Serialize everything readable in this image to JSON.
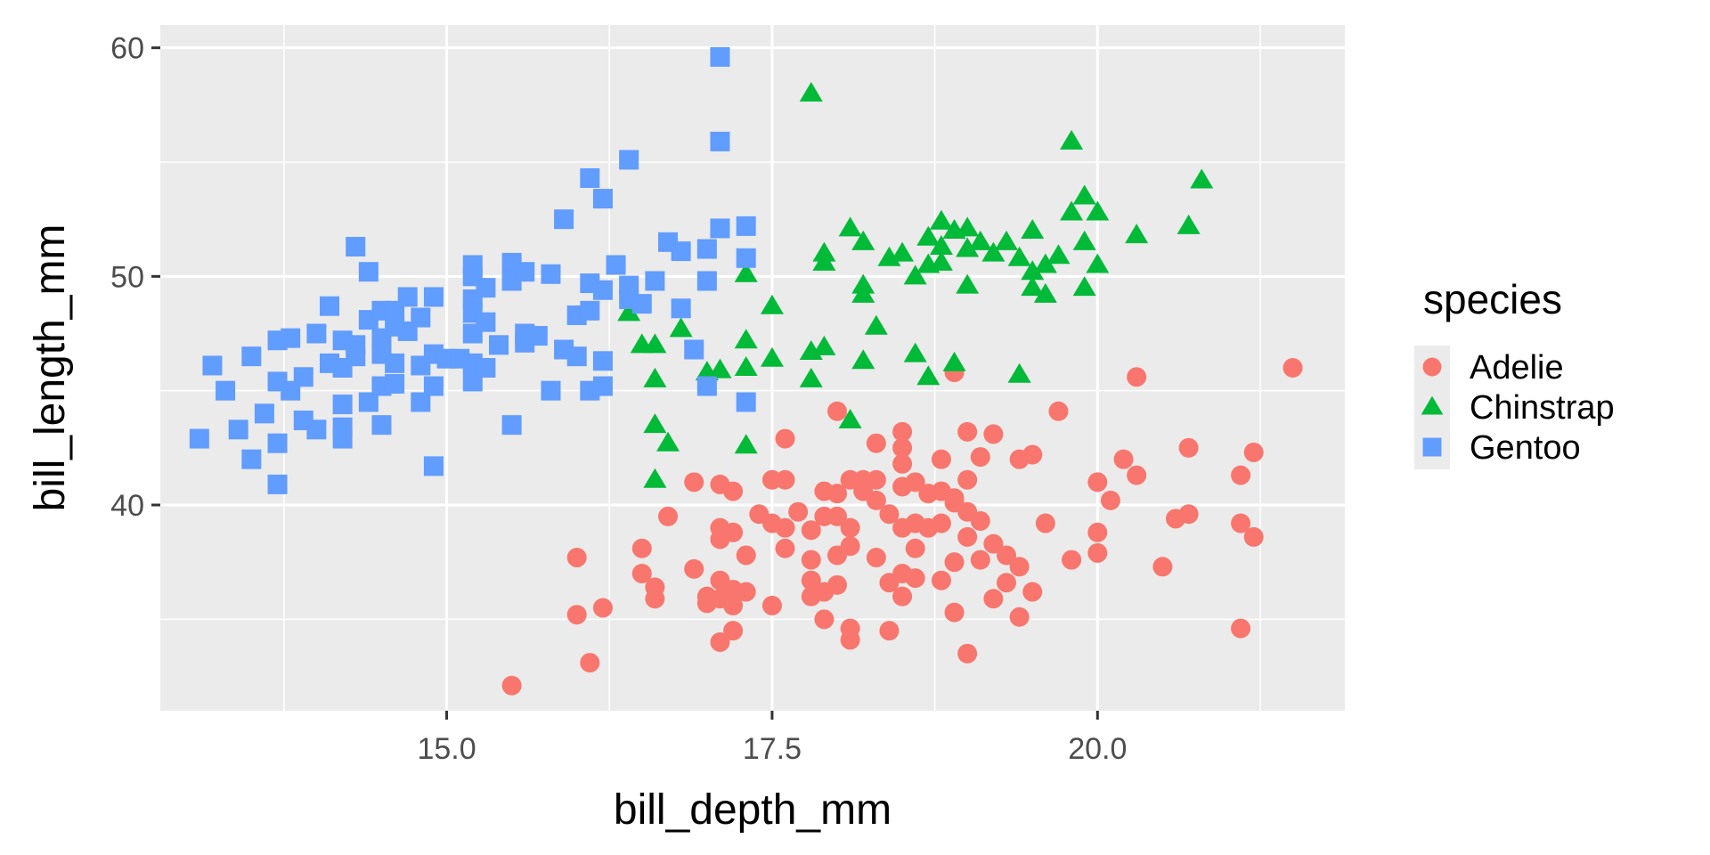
{
  "chart_data": {
    "type": "scatter",
    "xlabel": "bill_depth_mm",
    "ylabel": "bill_length_mm",
    "xlim": [
      12.8,
      21.9
    ],
    "ylim": [
      31.0,
      61.0
    ],
    "x_ticks": [
      15.0,
      17.5,
      20.0
    ],
    "x_tick_labels": [
      "15.0",
      "17.5",
      "20.0"
    ],
    "y_ticks": [
      40,
      50,
      60
    ],
    "y_tick_labels": [
      "40",
      "50",
      "60"
    ],
    "grid": true,
    "legend": {
      "title": "species",
      "position": "right"
    },
    "series": [
      {
        "name": "Adelie",
        "marker": "circle",
        "color": "#F8766D",
        "points": [
          [
            15.5,
            32.1
          ],
          [
            16.1,
            33.1
          ],
          [
            17.1,
            34.0
          ],
          [
            17.2,
            34.5
          ],
          [
            16.0,
            35.2
          ],
          [
            16.2,
            35.5
          ],
          [
            16.0,
            37.7
          ],
          [
            16.5,
            38.1
          ],
          [
            16.5,
            37.0
          ],
          [
            16.6,
            36.4
          ],
          [
            16.6,
            35.9
          ],
          [
            16.7,
            39.5
          ],
          [
            16.9,
            41.0
          ],
          [
            16.9,
            37.2
          ],
          [
            17.0,
            35.7
          ],
          [
            17.0,
            36.0
          ],
          [
            17.1,
            38.5
          ],
          [
            17.1,
            40.9
          ],
          [
            17.1,
            39.0
          ],
          [
            17.1,
            36.7
          ],
          [
            17.1,
            35.9
          ],
          [
            17.2,
            40.6
          ],
          [
            17.2,
            38.8
          ],
          [
            17.2,
            36.3
          ],
          [
            17.2,
            35.6
          ],
          [
            17.3,
            37.8
          ],
          [
            17.3,
            36.2
          ],
          [
            17.4,
            39.6
          ],
          [
            17.5,
            41.1
          ],
          [
            17.5,
            35.6
          ],
          [
            17.5,
            39.2
          ],
          [
            17.6,
            42.9
          ],
          [
            17.6,
            38.1
          ],
          [
            17.6,
            39.0
          ],
          [
            17.6,
            41.1
          ],
          [
            17.7,
            39.7
          ],
          [
            17.8,
            37.6
          ],
          [
            17.8,
            36.7
          ],
          [
            17.8,
            36.0
          ],
          [
            17.8,
            38.9
          ],
          [
            17.9,
            40.6
          ],
          [
            17.9,
            35.0
          ],
          [
            17.9,
            39.5
          ],
          [
            17.9,
            36.2
          ],
          [
            18.0,
            39.5
          ],
          [
            18.0,
            44.1
          ],
          [
            18.0,
            40.5
          ],
          [
            18.0,
            37.8
          ],
          [
            18.0,
            36.5
          ],
          [
            18.1,
            41.1
          ],
          [
            18.1,
            38.2
          ],
          [
            18.1,
            34.6
          ],
          [
            18.1,
            34.1
          ],
          [
            18.1,
            39.0
          ],
          [
            18.2,
            41.1
          ],
          [
            18.2,
            40.6
          ],
          [
            18.3,
            37.7
          ],
          [
            18.3,
            42.7
          ],
          [
            18.3,
            41.1
          ],
          [
            18.3,
            40.2
          ],
          [
            18.4,
            34.5
          ],
          [
            18.4,
            39.6
          ],
          [
            18.4,
            36.6
          ],
          [
            18.5,
            43.2
          ],
          [
            18.5,
            42.5
          ],
          [
            18.5,
            41.8
          ],
          [
            18.5,
            40.8
          ],
          [
            18.5,
            39.0
          ],
          [
            18.5,
            37.0
          ],
          [
            18.5,
            36.0
          ],
          [
            18.6,
            41.0
          ],
          [
            18.6,
            39.2
          ],
          [
            18.6,
            38.1
          ],
          [
            18.6,
            36.8
          ],
          [
            18.7,
            39.0
          ],
          [
            18.7,
            40.5
          ],
          [
            18.8,
            40.6
          ],
          [
            18.8,
            39.2
          ],
          [
            18.8,
            36.7
          ],
          [
            18.8,
            42.0
          ],
          [
            18.9,
            40.1
          ],
          [
            18.9,
            35.3
          ],
          [
            18.9,
            37.5
          ],
          [
            18.9,
            40.3
          ],
          [
            18.9,
            45.8
          ],
          [
            19.0,
            39.7
          ],
          [
            19.0,
            38.6
          ],
          [
            19.0,
            43.2
          ],
          [
            19.0,
            41.1
          ],
          [
            19.0,
            33.5
          ],
          [
            19.1,
            39.3
          ],
          [
            19.1,
            37.6
          ],
          [
            19.1,
            42.1
          ],
          [
            19.2,
            38.3
          ],
          [
            19.2,
            43.1
          ],
          [
            19.2,
            35.9
          ],
          [
            19.3,
            37.8
          ],
          [
            19.3,
            36.6
          ],
          [
            19.4,
            42.0
          ],
          [
            19.4,
            37.3
          ],
          [
            19.4,
            35.1
          ],
          [
            19.5,
            36.2
          ],
          [
            19.5,
            42.2
          ],
          [
            19.6,
            39.2
          ],
          [
            19.7,
            44.1
          ],
          [
            19.8,
            37.6
          ],
          [
            20.0,
            41.0
          ],
          [
            20.0,
            38.8
          ],
          [
            20.0,
            37.9
          ],
          [
            20.1,
            40.2
          ],
          [
            20.2,
            42.0
          ],
          [
            20.3,
            41.3
          ],
          [
            20.3,
            45.6
          ],
          [
            20.5,
            37.3
          ],
          [
            20.6,
            39.4
          ],
          [
            20.7,
            42.5
          ],
          [
            20.7,
            39.6
          ],
          [
            21.1,
            41.3
          ],
          [
            21.1,
            34.6
          ],
          [
            21.1,
            39.2
          ],
          [
            21.2,
            38.6
          ],
          [
            21.2,
            42.3
          ],
          [
            21.5,
            46.0
          ]
        ]
      },
      {
        "name": "Chinstrap",
        "marker": "triangle",
        "color": "#00BA38",
        "points": [
          [
            16.4,
            48.4
          ],
          [
            16.5,
            47.0
          ],
          [
            16.6,
            47.0
          ],
          [
            16.6,
            45.5
          ],
          [
            16.6,
            43.5
          ],
          [
            16.6,
            41.1
          ],
          [
            16.7,
            42.7
          ],
          [
            16.8,
            47.7
          ],
          [
            17.0,
            45.8
          ],
          [
            17.1,
            45.9
          ],
          [
            17.3,
            50.1
          ],
          [
            17.3,
            47.2
          ],
          [
            17.3,
            46.0
          ],
          [
            17.3,
            42.6
          ],
          [
            17.5,
            48.7
          ],
          [
            17.5,
            46.4
          ],
          [
            17.8,
            58.0
          ],
          [
            17.8,
            46.7
          ],
          [
            17.8,
            45.5
          ],
          [
            17.9,
            46.9
          ],
          [
            17.9,
            51.0
          ],
          [
            17.9,
            50.6
          ],
          [
            18.1,
            52.1
          ],
          [
            18.1,
            43.7
          ],
          [
            18.2,
            51.5
          ],
          [
            18.2,
            49.6
          ],
          [
            18.2,
            49.2
          ],
          [
            18.2,
            46.3
          ],
          [
            18.3,
            47.8
          ],
          [
            18.4,
            50.8
          ],
          [
            18.5,
            51.0
          ],
          [
            18.6,
            50.0
          ],
          [
            18.6,
            46.6
          ],
          [
            18.7,
            51.7
          ],
          [
            18.7,
            50.5
          ],
          [
            18.7,
            45.6
          ],
          [
            18.8,
            52.4
          ],
          [
            18.8,
            51.3
          ],
          [
            18.8,
            50.6
          ],
          [
            18.9,
            52.0
          ],
          [
            18.9,
            46.2
          ],
          [
            19.0,
            52.1
          ],
          [
            19.0,
            51.2
          ],
          [
            19.0,
            49.6
          ],
          [
            19.1,
            51.5
          ],
          [
            19.2,
            51.0
          ],
          [
            19.3,
            51.5
          ],
          [
            19.4,
            50.8
          ],
          [
            19.4,
            45.7
          ],
          [
            19.5,
            52.0
          ],
          [
            19.5,
            50.2
          ],
          [
            19.5,
            49.5
          ],
          [
            19.6,
            50.5
          ],
          [
            19.6,
            49.2
          ],
          [
            19.7,
            50.9
          ],
          [
            19.8,
            52.8
          ],
          [
            19.8,
            55.9
          ],
          [
            19.9,
            53.5
          ],
          [
            19.9,
            51.5
          ],
          [
            19.9,
            49.5
          ],
          [
            20.0,
            52.8
          ],
          [
            20.0,
            50.5
          ],
          [
            20.3,
            51.8
          ],
          [
            20.7,
            52.2
          ],
          [
            20.8,
            54.2
          ]
        ]
      },
      {
        "name": "Gentoo",
        "marker": "square",
        "color": "#619CFF",
        "points": [
          [
            13.1,
            42.9
          ],
          [
            13.2,
            46.1
          ],
          [
            13.3,
            45.0
          ],
          [
            13.4,
            43.3
          ],
          [
            13.5,
            46.5
          ],
          [
            13.5,
            42.0
          ],
          [
            13.6,
            44.0
          ],
          [
            13.7,
            47.2
          ],
          [
            13.7,
            45.4
          ],
          [
            13.7,
            42.7
          ],
          [
            13.7,
            40.9
          ],
          [
            13.8,
            47.3
          ],
          [
            13.8,
            45.0
          ],
          [
            13.9,
            45.6
          ],
          [
            13.9,
            43.7
          ],
          [
            14.0,
            47.5
          ],
          [
            14.0,
            43.3
          ],
          [
            14.1,
            48.7
          ],
          [
            14.1,
            46.2
          ],
          [
            14.2,
            47.2
          ],
          [
            14.2,
            46.0
          ],
          [
            14.2,
            44.4
          ],
          [
            14.2,
            43.4
          ],
          [
            14.2,
            42.9
          ],
          [
            14.3,
            51.3
          ],
          [
            14.3,
            46.5
          ],
          [
            14.3,
            47.0
          ],
          [
            14.4,
            50.2
          ],
          [
            14.4,
            48.1
          ],
          [
            14.4,
            44.5
          ],
          [
            14.5,
            48.5
          ],
          [
            14.5,
            47.3
          ],
          [
            14.5,
            46.6
          ],
          [
            14.5,
            45.2
          ],
          [
            14.5,
            43.5
          ],
          [
            14.6,
            48.5
          ],
          [
            14.6,
            47.8
          ],
          [
            14.6,
            46.2
          ],
          [
            14.6,
            45.3
          ],
          [
            14.7,
            49.1
          ],
          [
            14.7,
            47.6
          ],
          [
            14.8,
            48.2
          ],
          [
            14.8,
            46.1
          ],
          [
            14.8,
            44.5
          ],
          [
            14.9,
            49.1
          ],
          [
            14.9,
            45.2
          ],
          [
            14.9,
            46.6
          ],
          [
            14.9,
            41.7
          ],
          [
            15.0,
            46.4
          ],
          [
            15.1,
            46.4
          ],
          [
            15.2,
            50.5
          ],
          [
            15.2,
            50.0
          ],
          [
            15.2,
            49.0
          ],
          [
            15.2,
            48.4
          ],
          [
            15.2,
            47.5
          ],
          [
            15.2,
            46.2
          ],
          [
            15.2,
            45.4
          ],
          [
            15.3,
            48.0
          ],
          [
            15.3,
            49.5
          ],
          [
            15.3,
            46.0
          ],
          [
            15.4,
            47.0
          ],
          [
            15.5,
            50.6
          ],
          [
            15.5,
            49.8
          ],
          [
            15.5,
            43.5
          ],
          [
            15.6,
            47.5
          ],
          [
            15.6,
            50.2
          ],
          [
            15.6,
            47.1
          ],
          [
            15.7,
            47.4
          ],
          [
            15.8,
            50.1
          ],
          [
            15.8,
            45.0
          ],
          [
            15.9,
            46.8
          ],
          [
            15.9,
            52.5
          ],
          [
            16.0,
            48.3
          ],
          [
            16.0,
            46.5
          ],
          [
            16.1,
            54.3
          ],
          [
            16.1,
            49.7
          ],
          [
            16.1,
            48.5
          ],
          [
            16.1,
            45.0
          ],
          [
            16.2,
            53.4
          ],
          [
            16.2,
            49.4
          ],
          [
            16.2,
            46.3
          ],
          [
            16.2,
            45.2
          ],
          [
            16.3,
            50.5
          ],
          [
            16.4,
            55.1
          ],
          [
            16.4,
            49.6
          ],
          [
            16.4,
            49.0
          ],
          [
            16.5,
            48.8
          ],
          [
            16.6,
            49.8
          ],
          [
            16.7,
            51.5
          ],
          [
            16.8,
            51.1
          ],
          [
            16.8,
            48.6
          ],
          [
            16.9,
            46.8
          ],
          [
            17.0,
            45.2
          ],
          [
            17.0,
            51.2
          ],
          [
            17.0,
            49.8
          ],
          [
            17.1,
            59.6
          ],
          [
            17.1,
            55.9
          ],
          [
            17.1,
            52.1
          ],
          [
            17.3,
            52.2
          ],
          [
            17.3,
            50.8
          ],
          [
            17.3,
            44.5
          ]
        ]
      }
    ]
  }
}
